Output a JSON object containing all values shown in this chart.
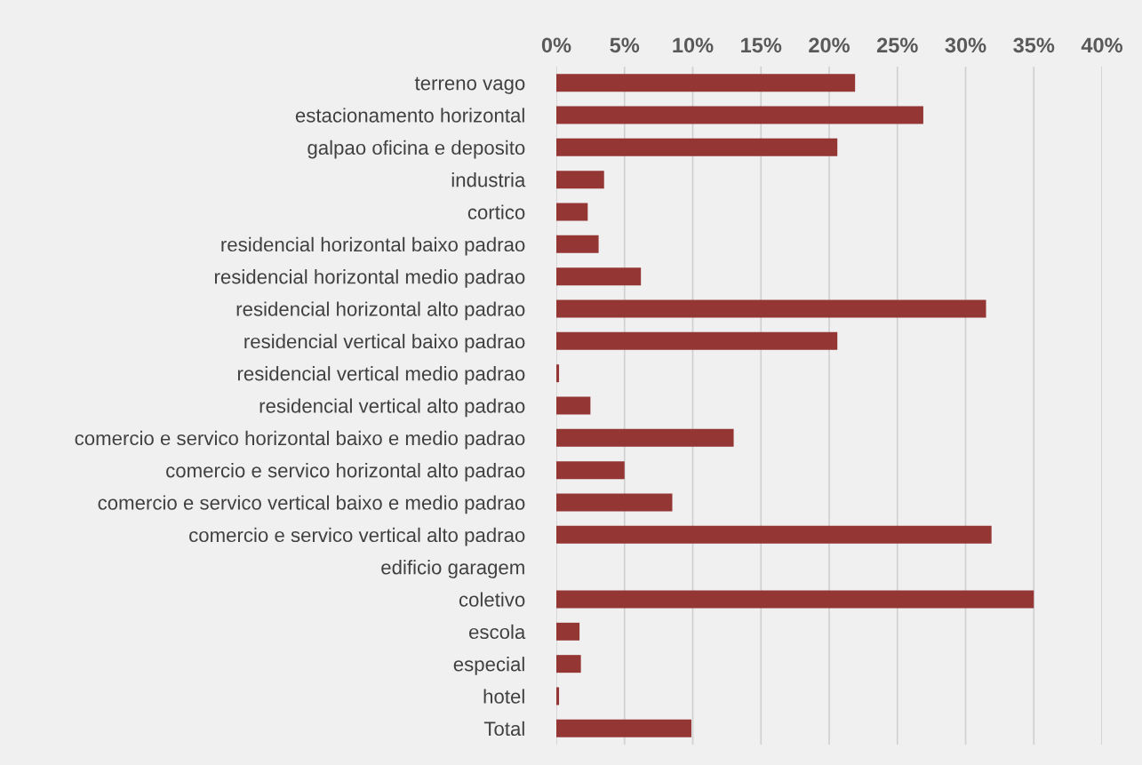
{
  "chart_data": {
    "type": "bar",
    "orientation": "horizontal",
    "categories": [
      "terreno vago",
      "estacionamento horizontal",
      "galpao oficina e deposito",
      "industria",
      "cortico",
      "residencial horizontal baixo padrao",
      "residencial horizontal medio padrao",
      "residencial horizontal alto padrao",
      "residencial vertical baixo padrao",
      "residencial vertical medio padrao",
      "residencial vertical alto padrao",
      "comercio e servico horizontal baixo e medio padrao",
      "comercio e servico horizontal alto padrao",
      "comercio e servico vertical baixo e medio padrao",
      "comercio e servico vertical alto padrao",
      "edificio garagem",
      "coletivo",
      "escola",
      "especial",
      "hotel",
      "Total"
    ],
    "values": [
      21.9,
      26.9,
      20.6,
      3.5,
      2.3,
      3.1,
      6.2,
      31.5,
      20.6,
      0.2,
      2.5,
      13.0,
      5.0,
      8.5,
      31.9,
      0,
      35.0,
      1.7,
      1.8,
      0.2,
      9.9
    ],
    "color": "#943634",
    "xlim": [
      0,
      40
    ],
    "xticks": [
      {
        "value": 0,
        "label": "0%"
      },
      {
        "value": 5,
        "label": "5%"
      },
      {
        "value": 10,
        "label": "10%"
      },
      {
        "value": 15,
        "label": "15%"
      },
      {
        "value": 20,
        "label": "20%"
      },
      {
        "value": 25,
        "label": "25%"
      },
      {
        "value": 30,
        "label": "30%"
      },
      {
        "value": 35,
        "label": "35%"
      },
      {
        "value": 40,
        "label": "40%"
      }
    ],
    "grid": "x"
  }
}
